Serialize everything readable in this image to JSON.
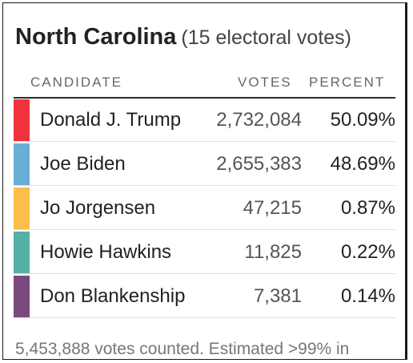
{
  "header": {
    "state": "North Carolina",
    "electoral_votes": "(15 electoral votes)"
  },
  "columns": {
    "candidate": "CANDIDATE",
    "votes": "VOTES",
    "percent": "PERCENT"
  },
  "candidates": [
    {
      "name": "Donald J. Trump",
      "votes": "2,732,084",
      "percent": "50.09%",
      "color": "#f0323c"
    },
    {
      "name": "Joe Biden",
      "votes": "2,655,383",
      "percent": "48.69%",
      "color": "#6aaed6"
    },
    {
      "name": "Jo Jorgensen",
      "votes": "47,215",
      "percent": "0.87%",
      "color": "#fbbe4b"
    },
    {
      "name": "Howie Hawkins",
      "votes": "11,825",
      "percent": "0.22%",
      "color": "#55b1a3"
    },
    {
      "name": "Don Blankenship",
      "votes": "7,381",
      "percent": "0.14%",
      "color": "#7a4a7e"
    }
  ],
  "footer": {
    "status": "5,453,888 votes counted. Estimated >99% in"
  }
}
